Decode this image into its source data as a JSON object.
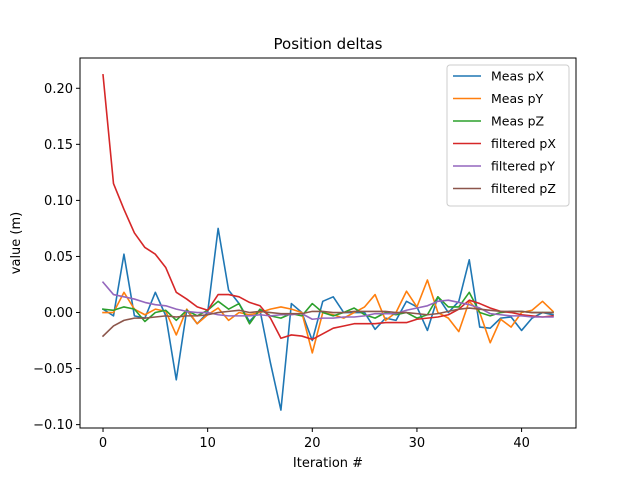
{
  "chart_data": {
    "type": "line",
    "title": "Position deltas",
    "xlabel": "Iteration #",
    "ylabel": "value (m)",
    "xlim": [
      -2.2,
      45.2
    ],
    "ylim": [
      -0.103,
      0.227
    ],
    "xticks": [
      0,
      10,
      20,
      30,
      40
    ],
    "yticks": [
      -0.1,
      -0.05,
      0.0,
      0.05,
      0.1,
      0.15,
      0.2
    ],
    "ytick_labels": [
      "−0.10",
      "−0.05",
      "0.00",
      "0.05",
      "0.10",
      "0.15",
      "0.20"
    ],
    "grid": false,
    "legend_position": "top-right",
    "x": [
      0,
      1,
      2,
      3,
      4,
      5,
      6,
      7,
      8,
      9,
      10,
      11,
      12,
      13,
      14,
      15,
      16,
      17,
      18,
      19,
      20,
      21,
      22,
      23,
      24,
      25,
      26,
      27,
      28,
      29,
      30,
      31,
      32,
      33,
      34,
      35,
      36,
      37,
      38,
      39,
      40,
      41,
      42,
      43
    ],
    "series": [
      {
        "name": "Meas pX",
        "color": "#1f77b4",
        "values": [
          0.003,
          -0.003,
          0.052,
          -0.003,
          -0.005,
          0.018,
          -0.003,
          -0.06,
          0.002,
          -0.01,
          0.0,
          0.075,
          0.02,
          0.008,
          -0.008,
          0.002,
          -0.045,
          -0.087,
          0.008,
          0.0,
          -0.025,
          0.01,
          0.014,
          0.0,
          0.0,
          0.0,
          -0.015,
          -0.005,
          -0.007,
          0.01,
          0.005,
          -0.016,
          0.014,
          0.0,
          0.01,
          0.047,
          -0.013,
          -0.014,
          -0.005,
          -0.004,
          -0.016,
          -0.005,
          0.0,
          -0.002
        ]
      },
      {
        "name": "Meas pY",
        "color": "#ff7f0e",
        "values": [
          0.0,
          0.0,
          0.018,
          0.003,
          -0.002,
          0.003,
          0.001,
          -0.02,
          0.003,
          -0.01,
          -0.002,
          0.004,
          -0.007,
          0.0,
          -0.002,
          0.0,
          0.003,
          0.005,
          0.003,
          0.0,
          -0.036,
          0.0,
          -0.002,
          -0.005,
          0.0,
          0.005,
          0.016,
          -0.007,
          0.0,
          0.019,
          0.005,
          0.029,
          0.0,
          -0.005,
          -0.017,
          0.01,
          0.0,
          -0.027,
          -0.006,
          -0.013,
          0.0,
          0.002,
          0.01,
          0.001
        ]
      },
      {
        "name": "Meas pZ",
        "color": "#2ca02c",
        "values": [
          0.003,
          0.002,
          0.005,
          0.003,
          -0.008,
          0.0,
          0.002,
          -0.007,
          0.002,
          -0.003,
          0.002,
          0.01,
          0.003,
          0.008,
          -0.01,
          0.003,
          -0.003,
          -0.005,
          -0.001,
          -0.003,
          0.008,
          0.0,
          -0.003,
          0.0,
          0.004,
          -0.002,
          -0.005,
          0.0,
          -0.002,
          0.0,
          -0.005,
          -0.002,
          0.014,
          0.005,
          0.005,
          0.018,
          0.0,
          -0.003,
          0.0,
          0.001,
          0.001,
          0.0,
          0.0,
          0.0
        ]
      },
      {
        "name": "filtered pX",
        "color": "#d62728",
        "values": [
          0.212,
          0.115,
          0.092,
          0.071,
          0.058,
          0.052,
          0.04,
          0.018,
          0.012,
          0.005,
          0.002,
          0.016,
          0.016,
          0.014,
          0.009,
          0.006,
          -0.005,
          -0.023,
          -0.02,
          -0.021,
          -0.024,
          -0.019,
          -0.014,
          -0.012,
          -0.01,
          -0.01,
          -0.01,
          -0.009,
          -0.009,
          -0.009,
          -0.006,
          -0.005,
          -0.004,
          -0.002,
          0.003,
          0.011,
          0.008,
          0.004,
          0.001,
          0.0,
          -0.002,
          -0.003,
          -0.004,
          -0.003
        ]
      },
      {
        "name": "filtered pY",
        "color": "#9467bd",
        "values": [
          0.027,
          0.016,
          0.014,
          0.012,
          0.009,
          0.007,
          0.006,
          0.003,
          0.001,
          0.0,
          0.0,
          -0.002,
          -0.003,
          -0.003,
          -0.003,
          -0.002,
          -0.003,
          -0.002,
          -0.002,
          -0.001,
          -0.006,
          -0.005,
          -0.005,
          -0.004,
          -0.004,
          -0.003,
          -0.001,
          -0.001,
          -0.001,
          0.002,
          0.004,
          0.006,
          0.01,
          0.011,
          0.009,
          0.007,
          0.004,
          -0.001,
          -0.002,
          -0.003,
          -0.003,
          -0.004,
          -0.004,
          -0.004
        ]
      },
      {
        "name": "filtered pZ",
        "color": "#8c564b",
        "values": [
          -0.021,
          -0.012,
          -0.007,
          -0.005,
          -0.005,
          -0.004,
          -0.003,
          -0.004,
          -0.003,
          -0.003,
          -0.002,
          0.0,
          0.001,
          0.002,
          0.0,
          0.001,
          0.0,
          -0.001,
          -0.001,
          -0.001,
          0.001,
          0.001,
          0.0,
          0.0,
          0.001,
          0.001,
          0.001,
          0.001,
          0.0,
          0.0,
          -0.001,
          -0.002,
          -0.001,
          0.001,
          0.003,
          0.004,
          0.003,
          0.002,
          0.001,
          0.001,
          0.001,
          0.0,
          0.0,
          0.0
        ]
      }
    ]
  }
}
